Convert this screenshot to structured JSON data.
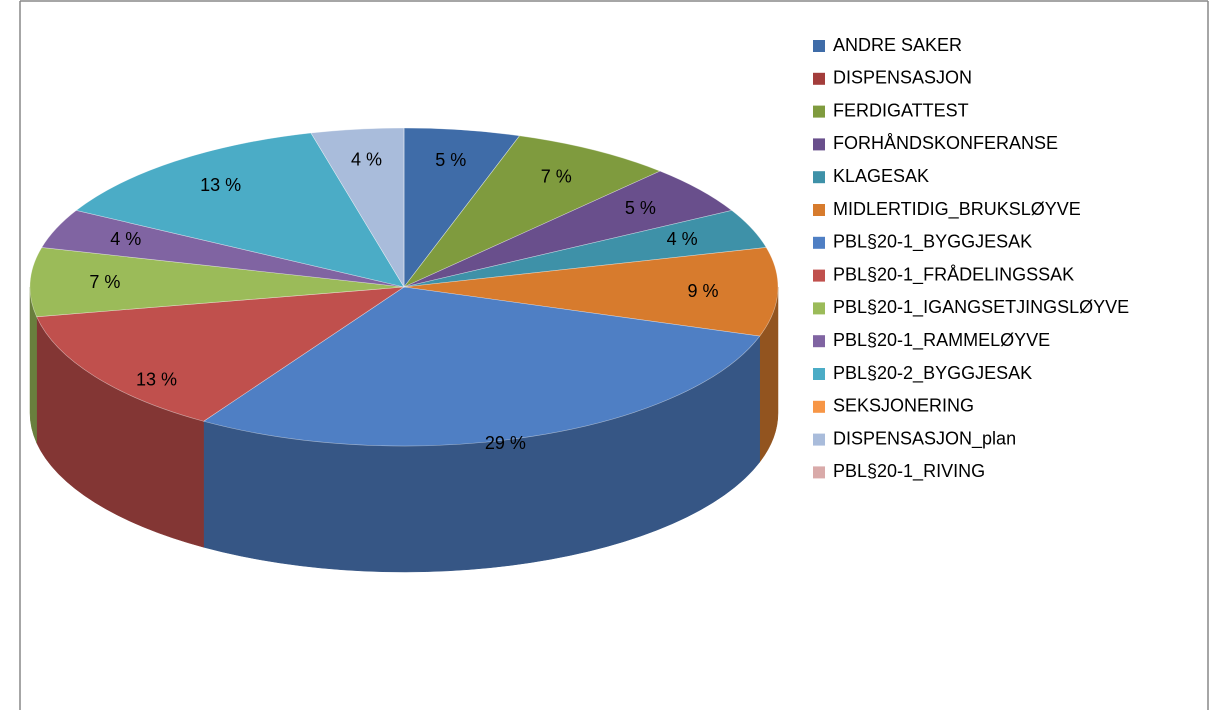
{
  "chart_data": {
    "type": "pie3d",
    "categories": [
      "ANDRE SAKER",
      "DISPENSASJON",
      "FERDIGATTEST",
      "FORHÅNDSKONFERANSE",
      "KLAGESAK",
      "MIDLERTIDIG_BRUKSLØYVE",
      "PBL§20-1_BYGGJESAK",
      "PBL§20-1_FRÅDELINGSSAK",
      "PBL§20-1_IGANGSETJINGSLØYVE",
      "PBL§20-1_RAMMELØYVE",
      "PBL§20-2_BYGGJESAK",
      "SEKSJONERING",
      "DISPENSASJON_plan",
      "PBL§20-1_RIVING"
    ],
    "values": [
      5,
      0,
      7,
      5,
      4,
      9,
      29,
      13,
      7,
      4,
      13,
      0,
      4,
      0
    ],
    "value_labels": [
      "5 %",
      null,
      "7 %",
      "5 %",
      "4 %",
      "9 %",
      "29 %",
      "13 %",
      "7 %",
      "4 %",
      "13 %",
      null,
      "4 %",
      null
    ],
    "colors": [
      "#3f6ca8",
      "#a33d3b",
      "#7f9b3e",
      "#694f8c",
      "#3e91a8",
      "#d77b2d",
      "#4f7fc4",
      "#c0504d",
      "#9bbb59",
      "#8064a2",
      "#4bacc6",
      "#f79646",
      "#a9bcdb",
      "#d9aaa9"
    ],
    "legend": "right"
  }
}
